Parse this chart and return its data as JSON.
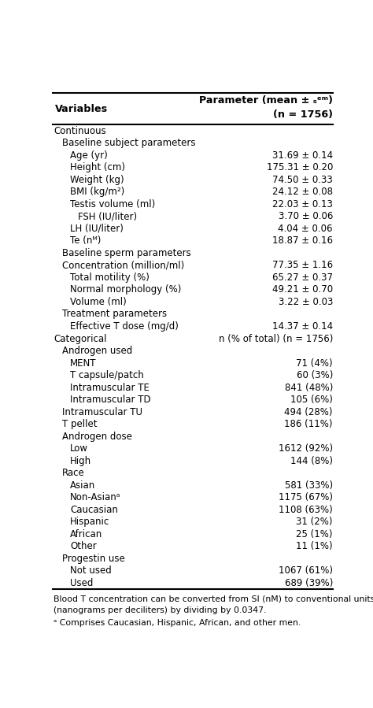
{
  "header_col1": "Variables",
  "header_col2_line1": "Parameter (mean ± ₛᵉᵐ)",
  "header_col2_line2": "(n = 1756)",
  "rows": [
    {
      "text": "Continuous",
      "value": "",
      "indent": 0
    },
    {
      "text": "Baseline subject parameters",
      "value": "",
      "indent": 1
    },
    {
      "text": "Age (yr)",
      "value": "31.69 ± 0.14",
      "indent": 2
    },
    {
      "text": "Height (cm)",
      "value": "175.31 ± 0.20",
      "indent": 2
    },
    {
      "text": "Weight (kg)",
      "value": "74.50 ± 0.33",
      "indent": 2
    },
    {
      "text": "BMI (kg/m²)",
      "value": "24.12 ± 0.08",
      "indent": 2
    },
    {
      "text": "Testis volume (ml)",
      "value": "22.03 ± 0.13",
      "indent": 2
    },
    {
      "text": "FSH (IU/liter)",
      "value": "3.70 ± 0.06",
      "indent": 3
    },
    {
      "text": "LH (IU/liter)",
      "value": "4.04 ± 0.06",
      "indent": 2
    },
    {
      "text": "Te (nᴹ)",
      "value": "18.87 ± 0.16",
      "indent": 2
    },
    {
      "text": "Baseline sperm parameters",
      "value": "",
      "indent": 1
    },
    {
      "text": "Concentration (million/ml)",
      "value": "77.35 ± 1.16",
      "indent": 1
    },
    {
      "text": "Total motility (%)",
      "value": "65.27 ± 0.37",
      "indent": 2
    },
    {
      "text": "Normal morphology (%)",
      "value": "49.21 ± 0.70",
      "indent": 2
    },
    {
      "text": "Volume (ml)",
      "value": "3.22 ± 0.03",
      "indent": 2
    },
    {
      "text": "Treatment parameters",
      "value": "",
      "indent": 1
    },
    {
      "text": "Effective T dose (mg/d)",
      "value": "14.37 ± 0.14",
      "indent": 2
    },
    {
      "text": "Categorical",
      "value": "n (% of total) (n = 1756)",
      "indent": 0
    },
    {
      "text": "Androgen used",
      "value": "",
      "indent": 1
    },
    {
      "text": "MENT",
      "value": "71 (4%)",
      "indent": 2
    },
    {
      "text": "T capsule/patch",
      "value": "60 (3%)",
      "indent": 2
    },
    {
      "text": "Intramuscular TE",
      "value": "841 (48%)",
      "indent": 2
    },
    {
      "text": "Intramuscular TD",
      "value": "105 (6%)",
      "indent": 2
    },
    {
      "text": "Intramuscular TU",
      "value": "494 (28%)",
      "indent": 1
    },
    {
      "text": "T pellet",
      "value": "186 (11%)",
      "indent": 1
    },
    {
      "text": "Androgen dose",
      "value": "",
      "indent": 1
    },
    {
      "text": "Low",
      "value": "1612 (92%)",
      "indent": 2
    },
    {
      "text": "High",
      "value": "144 (8%)",
      "indent": 2
    },
    {
      "text": "Race",
      "value": "",
      "indent": 1
    },
    {
      "text": "Asian",
      "value": "581 (33%)",
      "indent": 2
    },
    {
      "text": "Non-Asianᵃ",
      "value": "1175 (67%)",
      "indent": 2
    },
    {
      "text": "Caucasian",
      "value": "1108 (63%)",
      "indent": 2
    },
    {
      "text": "Hispanic",
      "value": "31 (2%)",
      "indent": 2
    },
    {
      "text": "African",
      "value": "25 (1%)",
      "indent": 2
    },
    {
      "text": "Other",
      "value": "11 (1%)",
      "indent": 2
    },
    {
      "text": "Progestin use",
      "value": "",
      "indent": 1
    },
    {
      "text": "Not used",
      "value": "1067 (61%)",
      "indent": 2
    },
    {
      "text": "Used",
      "value": "689 (39%)",
      "indent": 2
    }
  ],
  "footnotes": [
    "Blood T concentration can be converted from SI (nM) to conventional units",
    "(nanograms per deciliters) by dividing by 0.0347.",
    "ᵃ Comprises Caucasian, Hispanic, African, and other men."
  ],
  "bg_color": "#ffffff",
  "text_color": "#000000",
  "line_color": "#000000",
  "font_size": 8.5,
  "header_font_size": 9.2,
  "footnote_font_size": 7.8
}
